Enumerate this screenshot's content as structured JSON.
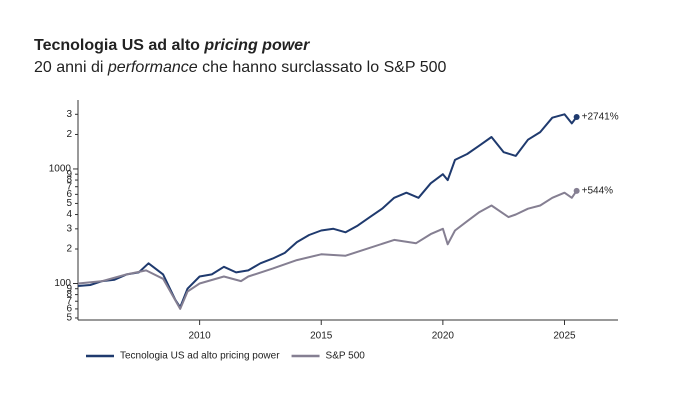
{
  "chart_data": {
    "type": "line",
    "title": [
      "Tecnologia US ad alto ",
      "pricing power"
    ],
    "subtitle": [
      "20 anni di ",
      "performance",
      " che hanno surclassato lo S&P 500"
    ],
    "log_scale": true,
    "xlim": [
      2005,
      2027.2
    ],
    "xticks": [
      2010,
      2015,
      2020,
      2025
    ],
    "ylim": [
      48,
      4000
    ],
    "yticks": [
      {
        "value": 50,
        "label": "5"
      },
      {
        "value": 60,
        "label": "6"
      },
      {
        "value": 70,
        "label": "7"
      },
      {
        "value": 80,
        "label": "8"
      },
      {
        "value": 90,
        "label": "9"
      },
      100,
      {
        "value": 200,
        "label": "2"
      },
      {
        "value": 300,
        "label": "3"
      },
      {
        "value": 400,
        "label": "4"
      },
      {
        "value": 500,
        "label": "5"
      },
      {
        "value": 600,
        "label": "6"
      },
      {
        "value": 700,
        "label": "7"
      },
      {
        "value": 800,
        "label": "8"
      },
      {
        "value": 900,
        "label": "9"
      },
      1000,
      {
        "value": 2000,
        "label": "2"
      },
      {
        "value": 3000,
        "label": "3"
      }
    ],
    "legend": "bottom-left",
    "series": [
      {
        "name": "Tecnologia US ad alto pricing power",
        "color": "#1f3a6e",
        "end_label": "+2741%",
        "x": [
          2005.0,
          2005.5,
          2006.0,
          2006.5,
          2007.0,
          2007.5,
          2007.9,
          2008.5,
          2009.0,
          2009.2,
          2009.5,
          2010.0,
          2010.5,
          2011.0,
          2011.5,
          2012.0,
          2012.5,
          2013.0,
          2013.5,
          2014.0,
          2014.5,
          2015.0,
          2015.5,
          2016.0,
          2016.5,
          2017.0,
          2017.5,
          2018.0,
          2018.5,
          2019.0,
          2019.5,
          2020.0,
          2020.2,
          2020.5,
          2021.0,
          2021.5,
          2022.0,
          2022.5,
          2023.0,
          2023.5,
          2024.0,
          2024.5,
          2025.0,
          2025.3,
          2025.5
        ],
        "values": [
          95,
          97,
          105,
          108,
          120,
          125,
          150,
          120,
          72,
          62,
          90,
          115,
          120,
          140,
          125,
          130,
          150,
          165,
          185,
          230,
          265,
          290,
          300,
          280,
          320,
          380,
          450,
          560,
          620,
          560,
          750,
          900,
          800,
          1200,
          1350,
          1600,
          1900,
          1400,
          1300,
          1800,
          2100,
          2800,
          3000,
          2500,
          2841
        ]
      },
      {
        "name": "S&P 500",
        "color": "#857f92",
        "end_label": "+544%",
        "x": [
          2005.0,
          2006.0,
          2007.0,
          2007.8,
          2008.5,
          2009.2,
          2009.5,
          2010.0,
          2011.0,
          2011.7,
          2012.0,
          2013.0,
          2014.0,
          2015.0,
          2016.0,
          2017.0,
          2018.0,
          2018.9,
          2019.5,
          2020.0,
          2020.2,
          2020.5,
          2021.0,
          2021.5,
          2022.0,
          2022.7,
          2023.0,
          2023.5,
          2024.0,
          2024.5,
          2025.0,
          2025.3,
          2025.5
        ],
        "values": [
          100,
          105,
          120,
          130,
          110,
          60,
          85,
          100,
          115,
          105,
          115,
          135,
          160,
          180,
          175,
          205,
          240,
          225,
          270,
          300,
          220,
          290,
          350,
          420,
          480,
          380,
          400,
          450,
          480,
          560,
          620,
          560,
          644
        ]
      }
    ]
  }
}
